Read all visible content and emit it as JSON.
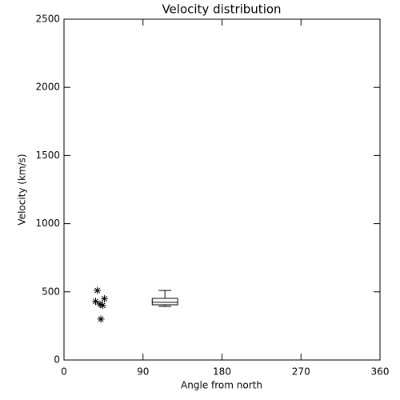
{
  "chart_data": {
    "type": "scatter",
    "title": "Velocity distribution",
    "x_label": "Angle from north",
    "y_label": "Velocity (km/s)",
    "xlim": [
      0,
      360
    ],
    "ylim": [
      0,
      2500
    ],
    "xticks": [
      0,
      90,
      180,
      270,
      360
    ],
    "yticks": [
      0,
      500,
      1000,
      1500,
      2000,
      2500
    ],
    "color": "#000000",
    "marker": "asterisk",
    "series": [
      {
        "x": [
          38,
          36,
          41,
          44,
          46,
          42
        ],
        "y": [
          510,
          430,
          410,
          400,
          450,
          300
        ]
      }
    ],
    "boxes": [
      {
        "x": 115,
        "width": 29,
        "min": 393,
        "q1": 405,
        "median": 423,
        "q3": 452,
        "max": 510
      }
    ]
  }
}
